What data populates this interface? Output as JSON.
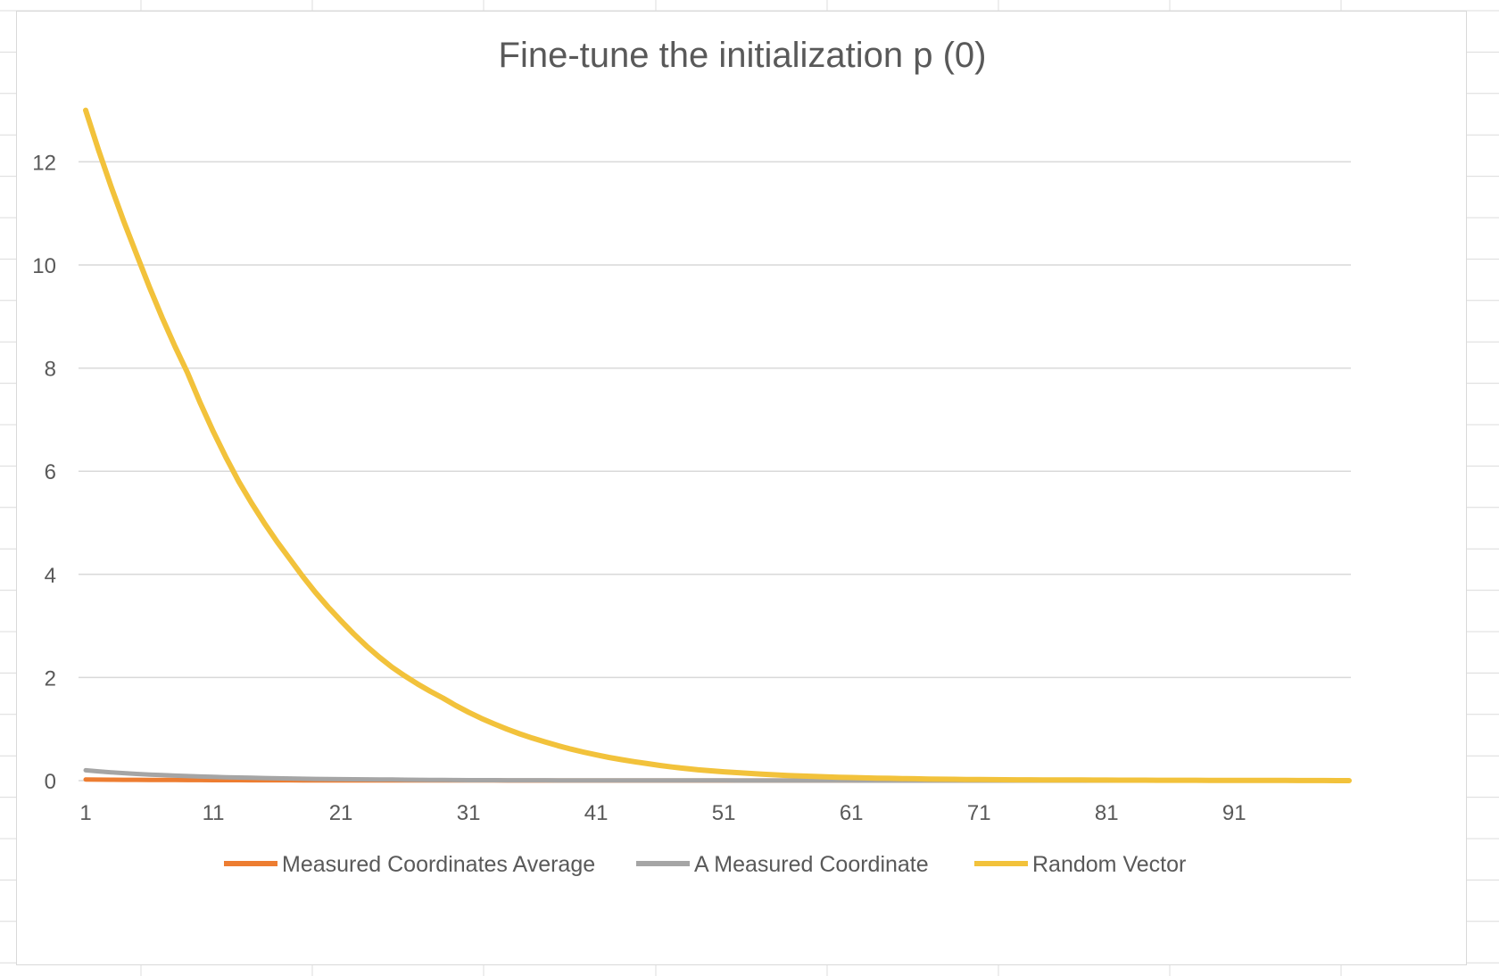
{
  "chart_data": {
    "type": "line",
    "title": "Fine-tune the initialization p (0)",
    "xlabel": "",
    "ylabel": "",
    "x_tick_labels": [
      "1",
      "11",
      "21",
      "31",
      "41",
      "51",
      "61",
      "71",
      "81",
      "91"
    ],
    "x_range": [
      1,
      100
    ],
    "ylim": [
      0,
      13
    ],
    "y_ticks": [
      0,
      2,
      4,
      6,
      8,
      10,
      12
    ],
    "grid": true,
    "legend_position": "bottom",
    "series": [
      {
        "name": "Measured Coordinates Average",
        "color": "#ED7D31",
        "model": "exponential-decay",
        "x": [
          1,
          5,
          10,
          15,
          20,
          30,
          40,
          50,
          60,
          70,
          80,
          90,
          100
        ],
        "values": [
          0.02,
          0.015,
          0.01,
          0.007,
          0.005,
          0.003,
          0.002,
          0.001,
          0.001,
          0.0,
          0.0,
          0.0,
          0.0
        ]
      },
      {
        "name": "A Measured Coordinate",
        "color": "#A5A5A5",
        "x": [
          1,
          5,
          10,
          15,
          20,
          25,
          30,
          40,
          50,
          60,
          70,
          80,
          90,
          100
        ],
        "values": [
          0.2,
          0.13,
          0.08,
          0.05,
          0.03,
          0.02,
          0.01,
          0.005,
          0.003,
          0.001,
          0.0,
          0.0,
          0.0,
          0.0
        ]
      },
      {
        "name": "Random Vector",
        "color": "#F2C23B",
        "x": [
          1,
          5,
          9,
          13,
          17,
          21,
          25,
          29,
          33,
          37,
          41,
          45,
          49,
          53,
          57,
          61,
          65,
          71,
          81,
          91,
          100
        ],
        "values": [
          13.0,
          10.2,
          7.9,
          5.8,
          4.3,
          3.1,
          2.2,
          1.6,
          1.1,
          0.75,
          0.5,
          0.33,
          0.21,
          0.14,
          0.09,
          0.06,
          0.04,
          0.02,
          0.01,
          0.005,
          0.0
        ]
      }
    ]
  }
}
